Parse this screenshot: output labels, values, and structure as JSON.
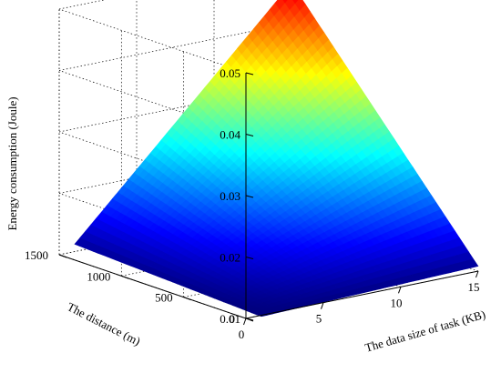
{
  "chart_data": {
    "type": "surface3d",
    "title": "",
    "xlabel": "The data size of task (KB)",
    "ylabel": "The distance (m)",
    "zlabel": "Energy consumption (Joule)",
    "xlim": [
      0,
      15
    ],
    "ylim": [
      0,
      1500
    ],
    "zlim": [
      0.01,
      0.05
    ],
    "x_ticks": [
      0,
      5,
      10,
      15
    ],
    "y_ticks": [
      0,
      500,
      1000,
      1500
    ],
    "z_ticks": [
      0.01,
      0.02,
      0.03,
      0.04,
      0.05
    ],
    "x_tick_labels": [
      "0",
      "5",
      "10",
      "15"
    ],
    "y_tick_labels": [
      "0",
      "500",
      "1000",
      "1500"
    ],
    "z_tick_labels": [
      "0.01",
      "0.02",
      "0.03",
      "0.04",
      "0.05"
    ],
    "surface_domain": {
      "x": [
        1,
        15
      ],
      "y": [
        1,
        1500
      ]
    },
    "corner_values": [
      {
        "x": 1,
        "y": 1,
        "z": 0.0098
      },
      {
        "x": 15,
        "y": 1,
        "z": 0.0108
      },
      {
        "x": 1,
        "y": 1500,
        "z": 0.0112
      },
      {
        "x": 15,
        "y": 1500,
        "z": 0.0465
      }
    ],
    "colormap": "jet",
    "grid": true
  }
}
